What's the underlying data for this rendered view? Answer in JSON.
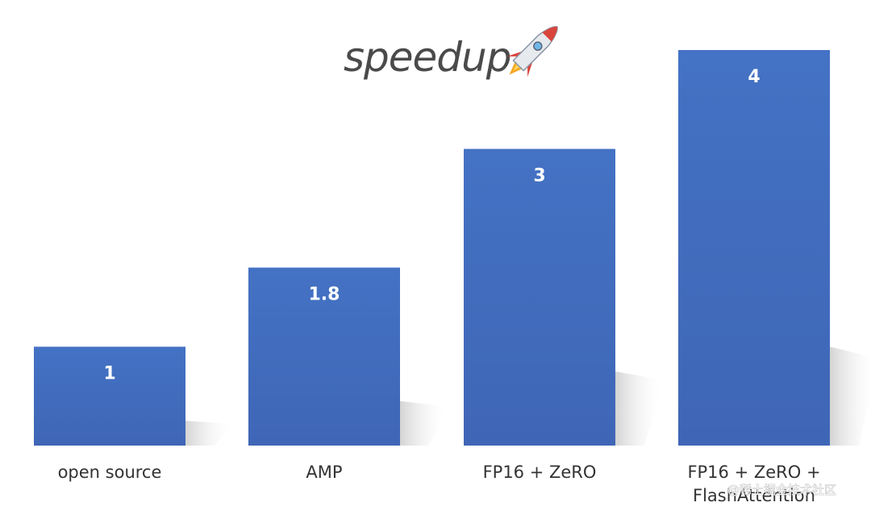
{
  "watermark": "@稀土掘金技术社区",
  "colors": {
    "bar": "#4472C4",
    "bar_dark": "#3F66B6",
    "shadow": "#d9d9d9",
    "rocket_body": "#e6e9ee",
    "rocket_accent": "#d9453b",
    "flame": "#f6a623"
  },
  "chart_data": {
    "type": "bar",
    "title": "speedup",
    "title_icon": "rocket-icon",
    "categories": [
      "open source",
      "AMP",
      "FP16 + ZeRO",
      "FP16 + ZeRO + FlashAttention"
    ],
    "category_lines": [
      [
        "open source"
      ],
      [
        "AMP"
      ],
      [
        "FP16 + ZeRO"
      ],
      [
        "FP16 + ZeRO +",
        "FlashAttention"
      ]
    ],
    "values": [
      1,
      1.8,
      3,
      4
    ],
    "value_labels": [
      "1",
      "1.8",
      "3",
      "4"
    ],
    "ylim": [
      0,
      4
    ],
    "xlabel": "",
    "ylabel": "",
    "grid": false,
    "legend": "none"
  }
}
